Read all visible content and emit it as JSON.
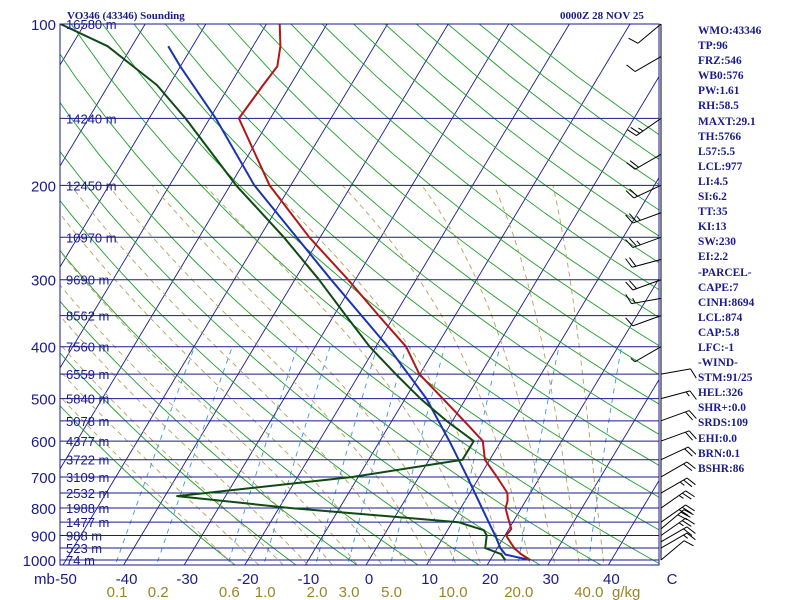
{
  "header": {
    "station": "VO346 (43346) Sounding",
    "datetime": "0000Z 28 NOV 25"
  },
  "stats": [
    "WMO:43346",
    "TP:96",
    "FRZ:546",
    "WB0:576",
    "PW:1.61",
    "RH:58.5",
    "MAXT:29.1",
    "TH:5766",
    "L57:5.5",
    "LCL:977",
    "LI:4.5",
    "SI:6.2",
    "TT:35",
    "KI:13",
    "SW:230",
    "EI:2.2",
    "-PARCEL-",
    "CAPE:7",
    "CINH:8694",
    "LCL:874",
    "CAP:5.8",
    "LFC:-1",
    "-WIND-",
    "STM:91/25",
    "HEL:326",
    "SHR+:0.0",
    "SRDS:109",
    "EHI:0.0",
    "BRN:0.1",
    "BSHR:86"
  ],
  "colors": {
    "frame": "#1a1a8c",
    "isobar": "#1a1a8c",
    "isotherm": "#1a1a8c",
    "dry_adiabat": "#1f9e2a",
    "moist_adiabat": "#b5a15a",
    "mixing_ratio": "#3a9ad9",
    "temperature": "#b01818",
    "dewpoint": "#0f4a12",
    "parcel": "#1a34b0",
    "wind": "#000000"
  },
  "chart_data": {
    "type": "skew-t",
    "title": "VO346 (43346) Sounding",
    "pressure_levels": [
      100,
      200,
      300,
      400,
      500,
      600,
      700,
      800,
      900,
      1000
    ],
    "pressure_tick_labels": [
      "100",
      "200",
      "300",
      "400",
      "500",
      "600",
      "700",
      "800",
      "900",
      "1000"
    ],
    "pressure_unit_label": "mb",
    "height_labels": [
      {
        "p": 100,
        "label": "16580 m"
      },
      {
        "p": 150,
        "label": "14240 m"
      },
      {
        "p": 200,
        "label": "12450 m"
      },
      {
        "p": 250,
        "label": "10970 m"
      },
      {
        "p": 300,
        "label": "9690 m"
      },
      {
        "p": 350,
        "label": "8562 m"
      },
      {
        "p": 400,
        "label": "7560 m"
      },
      {
        "p": 450,
        "label": "6559 m"
      },
      {
        "p": 500,
        "label": "5840 m"
      },
      {
        "p": 550,
        "label": "5078 m"
      },
      {
        "p": 600,
        "label": "4377 m"
      },
      {
        "p": 650,
        "label": "3722 m"
      },
      {
        "p": 700,
        "label": "3109 m"
      },
      {
        "p": 750,
        "label": "2532 m"
      },
      {
        "p": 800,
        "label": "1988 m"
      },
      {
        "p": 850,
        "label": "1477 m"
      },
      {
        "p": 900,
        "label": "988 m"
      },
      {
        "p": 950,
        "label": "523 m"
      },
      {
        "p": 1000,
        "label": "74 m"
      }
    ],
    "temperature_ticks": [
      -50,
      -40,
      -30,
      -20,
      -10,
      0,
      10,
      20,
      30,
      40,
      50
    ],
    "temperature_tick_labels": [
      "-50",
      "-40",
      "-30",
      "-20",
      "-10",
      "0",
      "10",
      "20",
      "30",
      "40",
      "C"
    ],
    "isotherm_range": [
      -130,
      50
    ],
    "mixing_ratio_values": [
      0.1,
      0.2,
      0.6,
      1.0,
      2.0,
      3.0,
      5.0,
      10.0,
      20.0,
      40.0
    ],
    "mixing_ratio_labels": [
      "0.1",
      "0.2",
      "0.6",
      "1.0",
      "2.0",
      "3.0",
      "5.0",
      "10.0",
      "20.0",
      "40.0"
    ],
    "mixing_ratio_unit": "g/kg",
    "temperature_profile": [
      {
        "p": 1000,
        "t": 26.5
      },
      {
        "p": 975,
        "t": 24.5
      },
      {
        "p": 950,
        "t": 22.8
      },
      {
        "p": 925,
        "t": 21.5
      },
      {
        "p": 900,
        "t": 20.2
      },
      {
        "p": 875,
        "t": 20.4
      },
      {
        "p": 850,
        "t": 19.4
      },
      {
        "p": 825,
        "t": 18.4
      },
      {
        "p": 800,
        "t": 17.4
      },
      {
        "p": 775,
        "t": 17.0
      },
      {
        "p": 750,
        "t": 16.2
      },
      {
        "p": 700,
        "t": 12.9
      },
      {
        "p": 650,
        "t": 9.2
      },
      {
        "p": 600,
        "t": 7.0
      },
      {
        "p": 550,
        "t": 1.9
      },
      {
        "p": 500,
        "t": -3.8
      },
      {
        "p": 450,
        "t": -10.1
      },
      {
        "p": 400,
        "t": -15.0
      },
      {
        "p": 350,
        "t": -22.6
      },
      {
        "p": 300,
        "t": -31.2
      },
      {
        "p": 250,
        "t": -41.8
      },
      {
        "p": 200,
        "t": -53.5
      },
      {
        "p": 150,
        "t": -65.2
      },
      {
        "p": 130,
        "t": -64.5
      },
      {
        "p": 120,
        "t": -64.0
      },
      {
        "p": 110,
        "t": -65.5
      },
      {
        "p": 100,
        "t": -67.8
      }
    ],
    "dewpoint_profile": [
      {
        "p": 1000,
        "t": 22.5
      },
      {
        "p": 975,
        "t": 21.2
      },
      {
        "p": 950,
        "t": 18.0
      },
      {
        "p": 900,
        "t": 17.0
      },
      {
        "p": 880,
        "t": 16.0
      },
      {
        "p": 850,
        "t": 11.0
      },
      {
        "p": 800,
        "t": -18.0
      },
      {
        "p": 760,
        "t": -38.0
      },
      {
        "p": 700,
        "t": -11.0
      },
      {
        "p": 650,
        "t": 5.5
      },
      {
        "p": 600,
        "t": 5.5
      },
      {
        "p": 550,
        "t": -1.0
      },
      {
        "p": 500,
        "t": -7.5
      },
      {
        "p": 450,
        "t": -14.0
      },
      {
        "p": 400,
        "t": -21.0
      },
      {
        "p": 350,
        "t": -28.0
      },
      {
        "p": 300,
        "t": -36.0
      },
      {
        "p": 250,
        "t": -46.0
      },
      {
        "p": 200,
        "t": -59.0
      },
      {
        "p": 150,
        "t": -74.0
      },
      {
        "p": 130,
        "t": -82.0
      },
      {
        "p": 110,
        "t": -94.0
      },
      {
        "p": 100,
        "t": -104.0
      }
    ],
    "parcel_profile": [
      {
        "p": 1000,
        "t": 26.5
      },
      {
        "p": 977,
        "t": 22.0
      },
      {
        "p": 950,
        "t": 20.5
      },
      {
        "p": 900,
        "t": 18.4
      },
      {
        "p": 850,
        "t": 16.0
      },
      {
        "p": 800,
        "t": 13.5
      },
      {
        "p": 700,
        "t": 8.0
      },
      {
        "p": 600,
        "t": 1.5
      },
      {
        "p": 500,
        "t": -6.5
      },
      {
        "p": 400,
        "t": -18.0
      },
      {
        "p": 300,
        "t": -34.0
      },
      {
        "p": 200,
        "t": -56.0
      },
      {
        "p": 150,
        "t": -69.0
      },
      {
        "p": 120,
        "t": -80.0
      },
      {
        "p": 110,
        "t": -84.0
      }
    ],
    "wind_barbs": [
      {
        "p": 100,
        "dir": 230,
        "spd": 10
      },
      {
        "p": 115,
        "dir": 240,
        "spd": 10
      },
      {
        "p": 150,
        "dir": 235,
        "spd": 25
      },
      {
        "p": 175,
        "dir": 240,
        "spd": 20
      },
      {
        "p": 200,
        "dir": 245,
        "spd": 20
      },
      {
        "p": 225,
        "dir": 250,
        "spd": 25
      },
      {
        "p": 250,
        "dir": 250,
        "spd": 25
      },
      {
        "p": 275,
        "dir": 255,
        "spd": 20
      },
      {
        "p": 300,
        "dir": 250,
        "spd": 20
      },
      {
        "p": 325,
        "dir": 260,
        "spd": 15
      },
      {
        "p": 350,
        "dir": 250,
        "spd": 10
      },
      {
        "p": 400,
        "dir": 240,
        "spd": 5
      },
      {
        "p": 450,
        "dir": 80,
        "spd": 10
      },
      {
        "p": 500,
        "dir": 75,
        "spd": 15
      },
      {
        "p": 550,
        "dir": 70,
        "spd": 20
      },
      {
        "p": 600,
        "dir": 70,
        "spd": 20
      },
      {
        "p": 650,
        "dir": 65,
        "spd": 20
      },
      {
        "p": 700,
        "dir": 60,
        "spd": 20
      },
      {
        "p": 750,
        "dir": 60,
        "spd": 25
      },
      {
        "p": 800,
        "dir": 55,
        "spd": 25
      },
      {
        "p": 850,
        "dir": 55,
        "spd": 30
      },
      {
        "p": 875,
        "dir": 50,
        "spd": 30
      },
      {
        "p": 900,
        "dir": 55,
        "spd": 25
      },
      {
        "p": 925,
        "dir": 60,
        "spd": 20
      },
      {
        "p": 950,
        "dir": 60,
        "spd": 15
      },
      {
        "p": 1000,
        "dir": 50,
        "spd": 10
      }
    ]
  }
}
